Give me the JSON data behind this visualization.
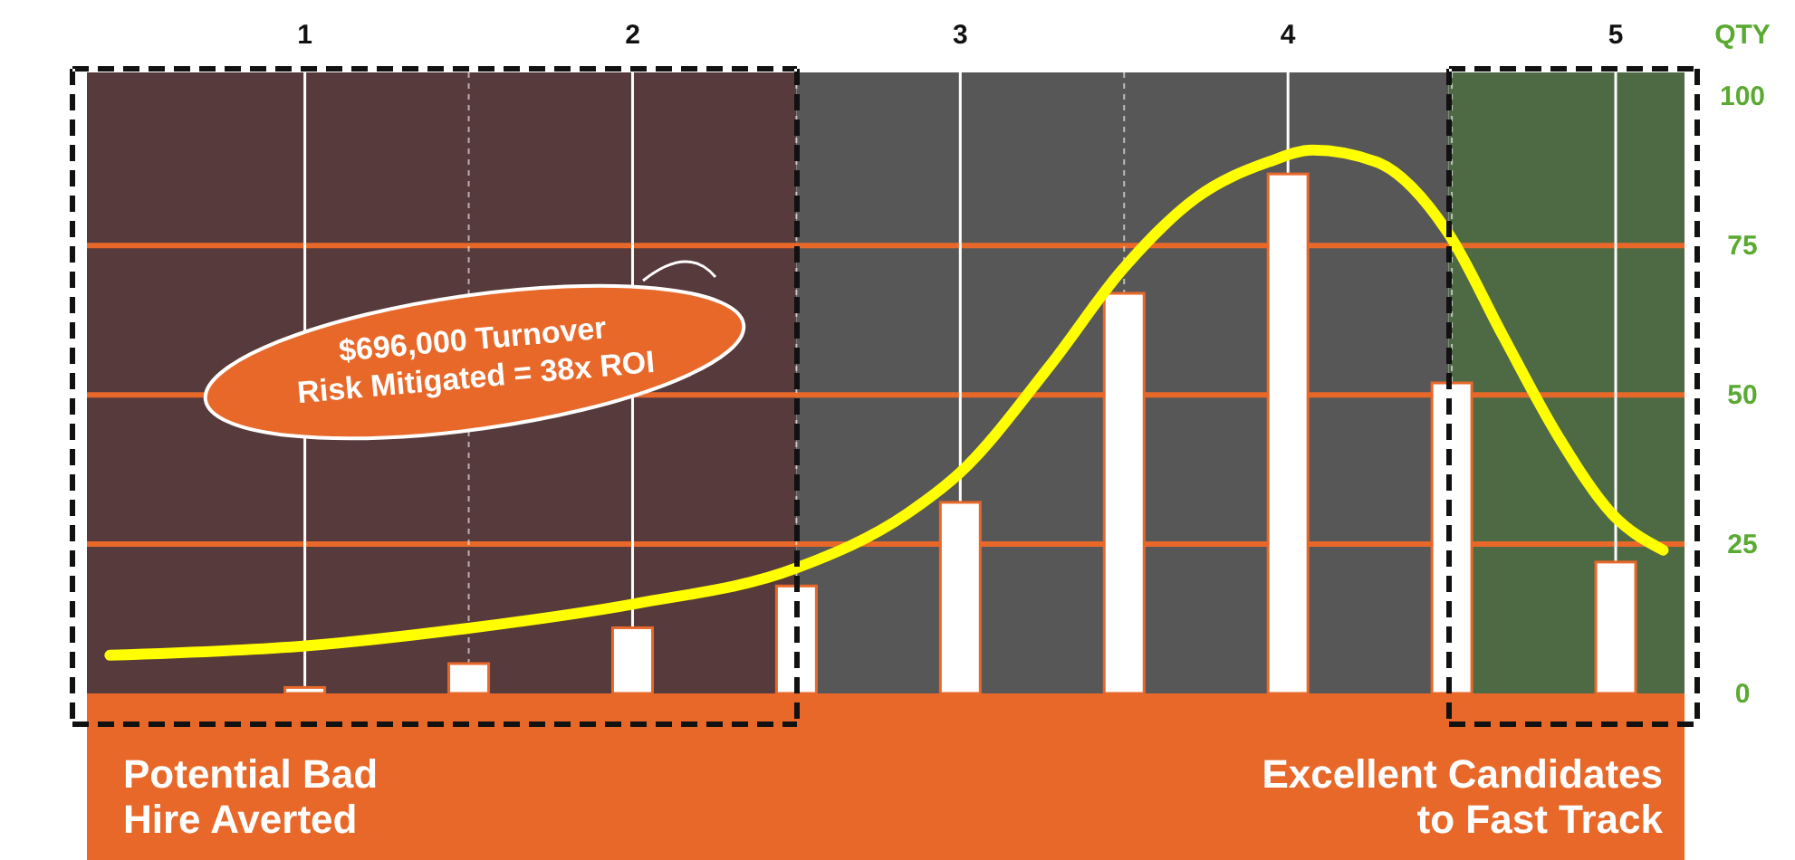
{
  "chart_data": {
    "type": "bar",
    "ylabel": "QTY",
    "x": [
      1,
      1.5,
      2,
      2.5,
      3,
      3.5,
      4,
      4.5,
      5
    ],
    "xlim": [
      0.335,
      5.21
    ],
    "xticks": [
      1,
      {
        "value": 1.5,
        "label": null
      },
      2,
      {
        "value": 2.5,
        "label": null
      },
      3,
      {
        "value": 3.5,
        "label": null
      },
      4,
      {
        "value": 4.5,
        "label": null
      },
      5
    ],
    "ylim": [
      0,
      104
    ],
    "yticks": [
      0,
      25,
      50,
      75,
      100
    ],
    "grid": true,
    "series": [
      {
        "color": "#ffffff",
        "values": [
          1,
          5,
          11,
          18,
          32,
          67,
          87,
          52,
          22
        ]
      },
      {
        "type": "line",
        "color": "#ffff00",
        "x": [
          0.405,
          1.01,
          1.51,
          2.005,
          2.5,
          2.835,
          3.0,
          3.275,
          3.495,
          3.72,
          3.94,
          4.075,
          4.27,
          4.49,
          4.655,
          4.825,
          4.99,
          5.145
        ],
        "values": [
          6.4,
          8,
          11,
          15,
          21,
          30,
          37,
          55,
          71,
          83,
          89,
          91,
          89,
          77,
          60,
          43,
          30,
          24
        ]
      }
    ],
    "bands": [
      {
        "axis": "x",
        "from": 0.335,
        "to": 2.5,
        "color": "#573a3b"
      },
      {
        "axis": "x",
        "from": 2.5,
        "to": 4.49,
        "color": "#575757"
      },
      {
        "axis": "x",
        "from": 4.49,
        "to": 5.21,
        "color": "#4e6a45"
      }
    ],
    "annotations": [
      "$696,000 Turnover\nRisk Mitigated = 38x ROI",
      "Potential Bad\nHire Averted",
      "Excellent Candidates\nto Fast Track"
    ]
  }
}
